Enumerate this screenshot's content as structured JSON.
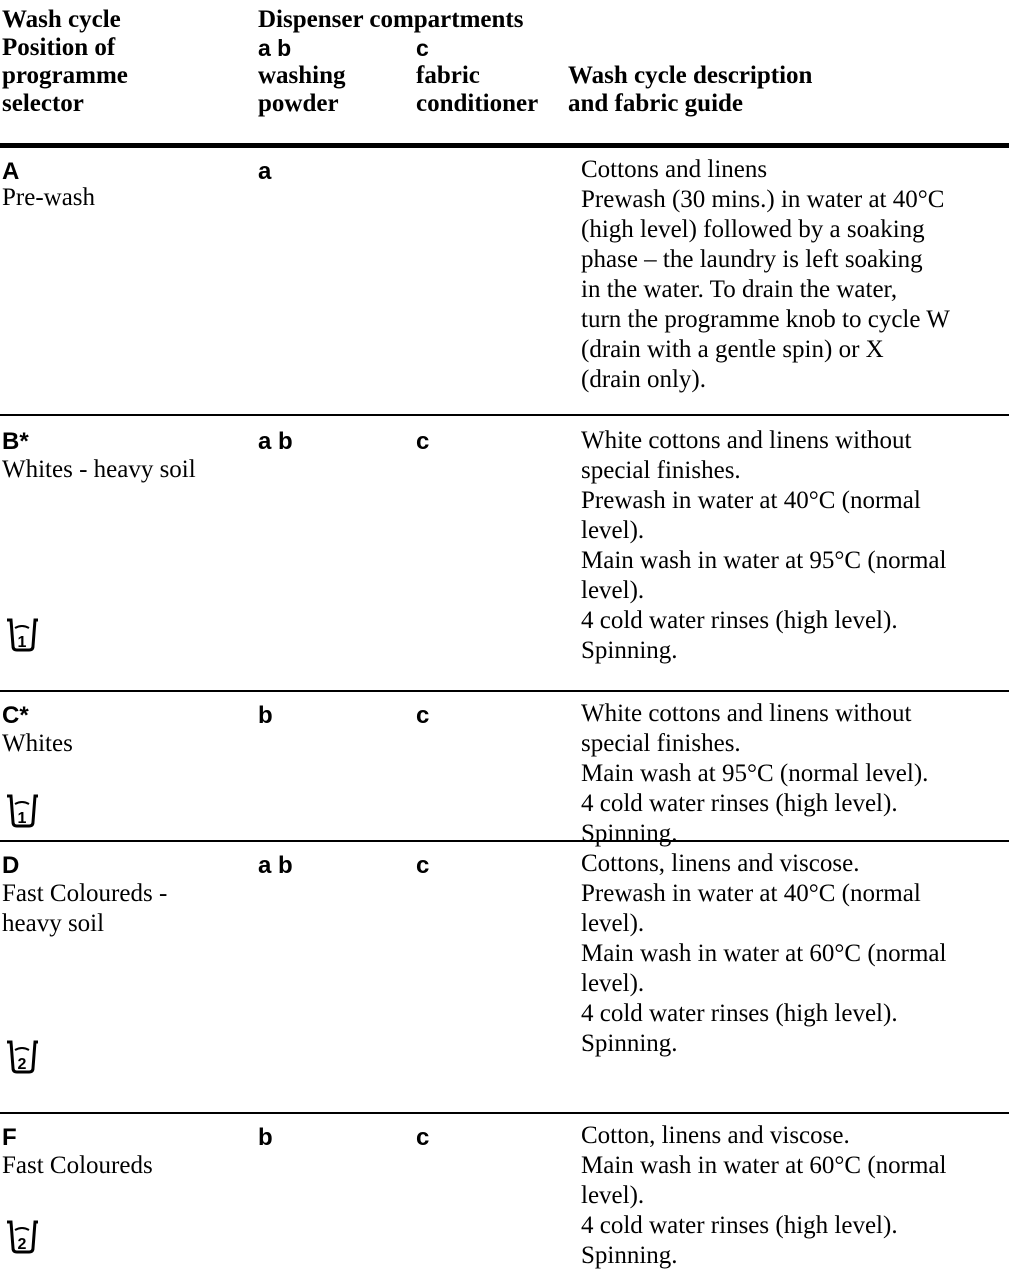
{
  "header": {
    "col1": [
      "Wash cycle",
      "Position of",
      "programme",
      "selector"
    ],
    "dispenser_title": "Dispenser compartments",
    "col2": [
      "a b",
      "washing",
      "powder"
    ],
    "col3": [
      "c",
      "fabric",
      "conditioner"
    ],
    "col4": [
      "Wash cycle description",
      "and fabric guide"
    ]
  },
  "rows": [
    {
      "letter": "A",
      "name": [
        "Pre-wash"
      ],
      "powder": "a",
      "conditioner": "",
      "icon_number": "",
      "description": [
        "Cottons and linens",
        "Prewash (30 mins.) in water at 40°C",
        "(high level) followed by a soaking",
        "phase – the laundry is left soaking",
        "in the water. To drain the water,",
        "turn the programme knob to cycle W",
        "(drain with a gentle spin) or X",
        "(drain only)."
      ]
    },
    {
      "letter": "B*",
      "name": [
        "Whites - heavy soil"
      ],
      "powder": "a b",
      "conditioner": "c",
      "icon_number": "1",
      "description": [
        "White cottons and linens without",
        "special finishes.",
        "Prewash in water at 40°C (normal",
        "level).",
        "Main wash in water at 95°C (normal",
        "level).",
        "4 cold water rinses (high level).",
        "Spinning."
      ]
    },
    {
      "letter": "C*",
      "name": [
        "Whites"
      ],
      "powder": "b",
      "conditioner": "c",
      "icon_number": "1",
      "description": [
        "White cottons and linens without",
        "special finishes.",
        "Main wash at 95°C (normal level).",
        "4 cold water rinses (high level).",
        "Spinning."
      ]
    },
    {
      "letter": "D",
      "name": [
        "Fast Coloureds -",
        "heavy soil"
      ],
      "powder": "a b",
      "conditioner": "c",
      "icon_number": "2",
      "description": [
        "Cottons, linens and viscose.",
        "Prewash in water at 40°C (normal",
        "level).",
        "Main wash in water at 60°C (normal",
        "level).",
        "4 cold water rinses (high level).",
        "Spinning."
      ]
    },
    {
      "letter": "F",
      "name": [
        "Fast Coloureds"
      ],
      "powder": "b",
      "conditioner": "c",
      "icon_number": "2",
      "description": [
        "Cotton, linens and viscose.",
        "Main wash in water at 60°C (normal",
        "level).",
        "4 cold water rinses (high level).",
        "Spinning."
      ]
    }
  ]
}
